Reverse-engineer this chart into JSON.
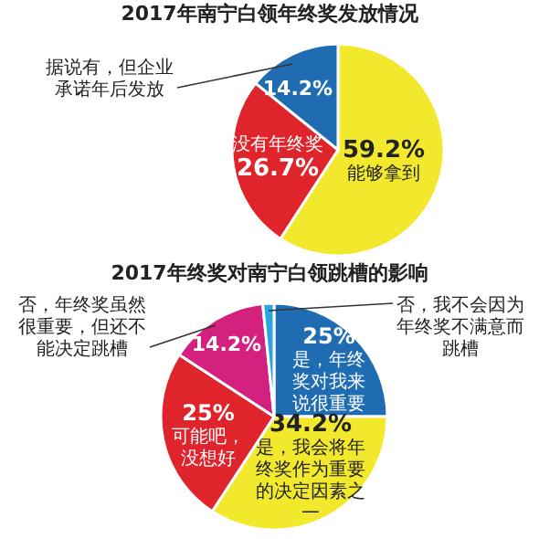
{
  "chart_data": [
    {
      "type": "pie",
      "title": "2017年南宁白领年终奖发放情况",
      "categories": [
        "能够拿到",
        "没有年终奖",
        "据说有，但企业承诺年后发放"
      ],
      "values": [
        59.2,
        26.7,
        14.2
      ],
      "colors": [
        "#f2e82c",
        "#e0242c",
        "#1f6cb3"
      ],
      "value_labels": [
        "59.2%",
        "26.7%",
        "14.2%"
      ]
    },
    {
      "type": "pie",
      "title": "2017年终奖对南宁白领跳槽的影响",
      "categories": [
        "是，年终奖对我来说很重要",
        "是，我会将年终奖作为重要的决定因素之一",
        "可能吧，没想好",
        "否，年终奖虽然很重要，但还不能决定跳槽",
        "否，我不会因为年终奖不满意而跳槽"
      ],
      "values": [
        25,
        34.2,
        25,
        14.2,
        1.6
      ],
      "colors": [
        "#1f6cb3",
        "#f2e82c",
        "#e0242c",
        "#d4207f",
        "#2aa6dc"
      ],
      "value_labels": [
        "25%",
        "34.2%",
        "25%",
        "14.2%",
        null
      ]
    }
  ]
}
